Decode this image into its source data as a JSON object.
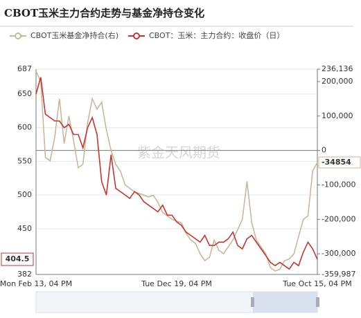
{
  "chart_data": {
    "type": "line",
    "title": "CBOT玉米主力合约走势与基金净持仓变化",
    "watermark": "紫金天风期货",
    "categories": [
      "Mon Feb 13, 04 PM",
      null,
      null,
      null,
      null,
      null,
      null,
      null,
      null,
      null,
      null,
      null,
      null,
      null,
      null,
      null,
      null,
      null,
      null,
      null,
      null,
      null,
      null,
      null,
      null,
      null,
      null,
      null,
      null,
      null,
      "Tue Dec 19, 04 PM",
      null,
      null,
      null,
      null,
      null,
      null,
      null,
      null,
      null,
      null,
      null,
      null,
      null,
      null,
      null,
      null,
      null,
      null,
      null,
      null,
      null,
      null,
      null,
      null,
      null,
      null,
      null,
      null,
      null,
      "Tue Oct 15, 04 PM"
    ],
    "series": [
      {
        "name": "CBOT玉米基金净持合(右)",
        "color": "#c9b79c",
        "axis": "y2",
        "values": [
          230000,
          200000,
          -20000,
          -30000,
          40000,
          150000,
          20000,
          100000,
          30000,
          -50000,
          -40000,
          80000,
          150000,
          120000,
          140000,
          60000,
          0,
          -40000,
          -60000,
          -100000,
          -110000,
          -120000,
          -125000,
          -130000,
          -135000,
          -130000,
          -150000,
          -180000,
          -190000,
          -200000,
          -205000,
          -210000,
          -240000,
          -260000,
          -270000,
          -300000,
          -320000,
          -310000,
          -260000,
          -290000,
          -300000,
          -280000,
          -260000,
          -230000,
          -200000,
          -90000,
          -210000,
          -260000,
          -280000,
          -300000,
          -340000,
          -350000,
          -345000,
          -320000,
          -315000,
          -300000,
          -250000,
          -200000,
          -190000,
          -60000,
          -34854
        ]
      },
      {
        "name": "CBOT：玉米：主力合约：收盘价（日）",
        "color": "#c23531",
        "values": [
          650,
          675,
          620,
          615,
          610,
          610,
          600,
          605,
          590,
          590,
          570,
          600,
          615,
          590,
          520,
          500,
          560,
          510,
          505,
          500,
          495,
          505,
          500,
          490,
          485,
          480,
          475,
          485,
          470,
          470,
          460,
          455,
          445,
          440,
          435,
          430,
          440,
          425,
          425,
          430,
          430,
          435,
          445,
          425,
          420,
          435,
          440,
          430,
          420,
          410,
          400,
          395,
          400,
          395,
          390,
          400,
          395,
          415,
          430,
          420,
          404.5
        ]
      }
    ],
    "ylim": [
      382,
      687
    ],
    "yticks": [
      382,
      450,
      500,
      550,
      600,
      650,
      687
    ],
    "y2lim": [
      -359987,
      236136
    ],
    "y2ticks": [
      {
        "value": -359987,
        "label": "-359,987"
      },
      {
        "value": -300000,
        "label": "-300,000"
      },
      {
        "value": -200000,
        "label": "-200,000"
      },
      {
        "value": -100000,
        "label": "-100,000"
      },
      0,
      {
        "value": 100000,
        "label": "100,000"
      },
      {
        "value": 200000,
        "label": "200,000"
      },
      {
        "value": 236136,
        "label": "236,136"
      }
    ],
    "grid": true
  }
}
